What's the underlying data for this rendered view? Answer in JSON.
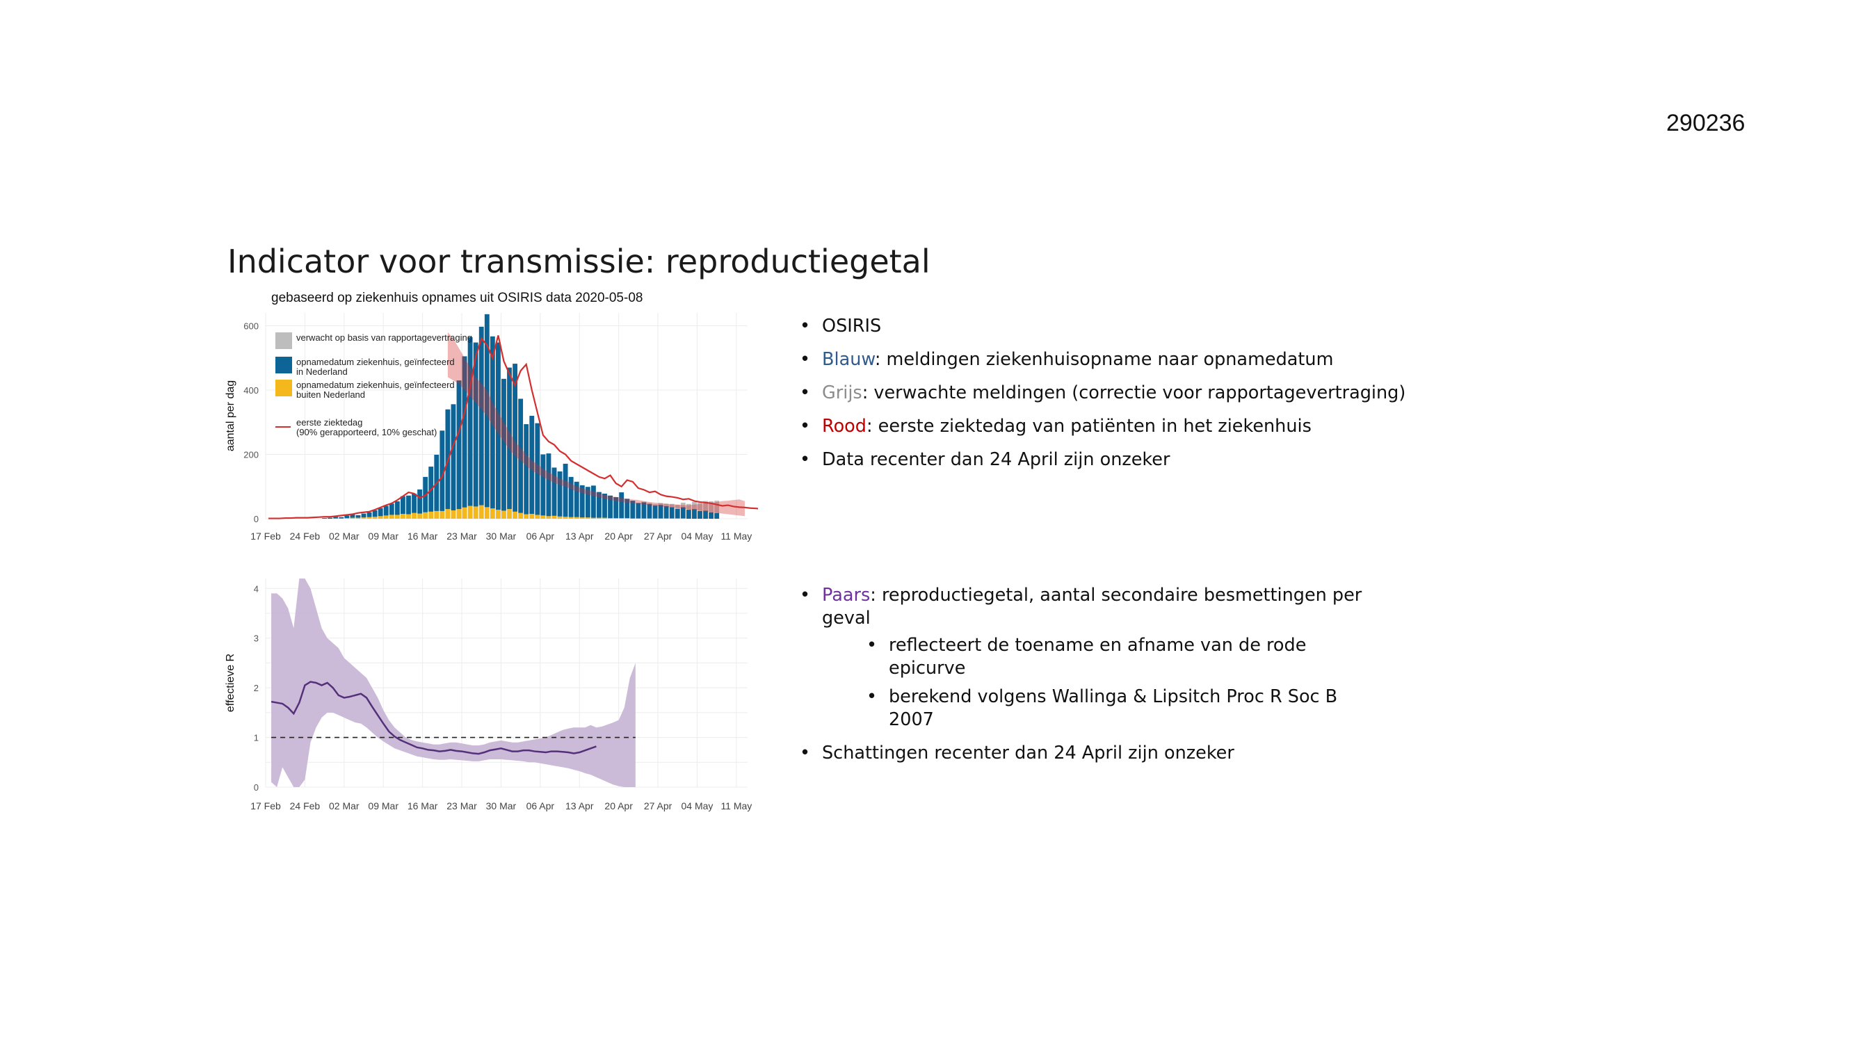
{
  "doc_id": "290236",
  "slide_title": "Indicator voor transmissie: reproductiegetal",
  "colors": {
    "blue": "#0d6496",
    "grey": "#bdbdbd",
    "yellow": "#f4b81d",
    "red": "#d32f2f",
    "purple": "#54307a",
    "purple_band": "#c7b4d4",
    "blue_text": "#2f5b8f",
    "grey_text": "#8c8c8c",
    "red_text": "#c00000",
    "purple_text": "#7030a0"
  },
  "bullets_top": [
    {
      "prefix": "",
      "text": "OSIRIS"
    },
    {
      "prefix": "Blauw",
      "prefix_color": "#2f5b8f",
      "text": ": meldingen ziekenhuisopname naar opnamedatum"
    },
    {
      "prefix": "Grijs",
      "prefix_color": "#8c8c8c",
      "text": ": verwachte meldingen (correctie voor rapportagevertraging)"
    },
    {
      "prefix": "Rood",
      "prefix_color": "#c00000",
      "text": ": eerste ziektedag van patiënten in het ziekenhuis"
    },
    {
      "prefix": "",
      "text": "Data recenter dan 24 April zijn onzeker"
    }
  ],
  "bullets_bottom": {
    "main_prefix": "Paars",
    "main_text": ": reproductiegetal, aantal secondaire  besmettingen per geval",
    "sub": [
      "reflecteert de toename en afname van de rode epicurve",
      "berekend volgens Wallinga & Lipsitch Proc R Soc B 2007"
    ],
    "last": "Schattingen recenter dan 24 April zijn onzeker"
  },
  "chart_data": [
    {
      "type": "bar",
      "title": "gebaseerd op ziekenhuis opnames uit OSIRIS data 2020-05-08",
      "ylabel": "aantal per dag",
      "xlabel": "",
      "ylim": [
        0,
        640
      ],
      "yticks": [
        0,
        200,
        400,
        600
      ],
      "xticks": [
        "17 Feb",
        "24 Feb",
        "02 Mar",
        "09 Mar",
        "16 Mar",
        "23 Mar",
        "30 Mar",
        "06 Apr",
        "13 Apr",
        "20 Apr",
        "27 Apr",
        "04 May",
        "11 May"
      ],
      "start_date": "2020-02-17",
      "grid": true,
      "legend": [
        {
          "label": "verwacht op basis van rapportagevertraging",
          "color": "#bdbdbd"
        },
        {
          "label": "opnamedatum ziekenhuis, geïnfecteerd\nin Nederland",
          "color": "#0d6496"
        },
        {
          "label": "opnamedatum ziekenhuis, geïnfecteerd\nbuiten Nederland",
          "color": "#f4b81d"
        },
        {
          "label": "eerste ziektedag\n(90% gerapporteerd, 10% geschat)",
          "color": "#d32f2f",
          "line": true
        }
      ],
      "series": [
        {
          "name": "opnamedatum ziekenhuis, geïnfecteerd in Nederland",
          "start": "2020-02-27",
          "values": [
            2,
            3,
            5,
            4,
            8,
            10,
            8,
            12,
            15,
            20,
            25,
            30,
            35,
            42,
            55,
            58,
            60,
            75,
            110,
            140,
            175,
            250,
            310,
            330,
            400,
            470,
            525,
            510,
            555,
            600,
            535,
            520,
            410,
            440,
            460,
            355,
            280,
            305,
            285,
            190,
            195,
            150,
            140,
            165,
            125,
            110,
            100,
            95,
            100,
            80,
            75,
            70,
            65,
            80,
            60,
            55,
            48,
            50,
            45,
            40,
            42,
            38,
            35,
            30,
            35,
            28,
            30,
            24,
            25,
            20,
            18
          ]
        },
        {
          "name": "opnamedatum ziekenhuis, geïnfecteerd buiten Nederland",
          "start": "2020-02-27",
          "values": [
            0,
            0,
            1,
            1,
            2,
            3,
            3,
            4,
            5,
            6,
            8,
            10,
            12,
            12,
            15,
            14,
            18,
            16,
            20,
            22,
            24,
            24,
            30,
            26,
            30,
            35,
            40,
            38,
            42,
            36,
            32,
            28,
            25,
            30,
            22,
            18,
            14,
            15,
            12,
            10,
            8,
            9,
            7,
            6,
            5,
            5,
            4,
            4,
            3,
            3,
            3,
            2,
            2,
            2,
            2,
            1,
            1,
            1,
            1,
            1,
            1,
            1,
            1,
            1,
            1,
            0,
            0,
            0,
            0,
            0,
            0
          ]
        },
        {
          "name": "verwacht op basis van rapportagevertraging",
          "start": "2020-04-24",
          "values": [
            2,
            3,
            4,
            6,
            8,
            10,
            12,
            14,
            18,
            22,
            26,
            30,
            34,
            38
          ]
        },
        {
          "name": "eerste ziektedag (90% gerapporteerd, 10% geschat)",
          "start": "2020-02-17",
          "values": [
            1,
            1,
            1,
            2,
            2,
            3,
            3,
            3,
            4,
            5,
            6,
            6,
            8,
            10,
            12,
            14,
            18,
            20,
            22,
            28,
            35,
            42,
            48,
            58,
            70,
            82,
            78,
            65,
            72,
            90,
            110,
            130,
            180,
            230,
            270,
            330,
            410,
            505,
            560,
            540,
            500,
            570,
            490,
            450,
            415,
            460,
            480,
            400,
            330,
            260,
            240,
            230,
            210,
            200,
            180,
            170,
            160,
            150,
            140,
            130,
            125,
            135,
            110,
            100,
            120,
            115,
            95,
            90,
            82,
            85,
            75,
            70,
            68,
            65,
            60,
            62,
            55,
            52,
            50,
            48,
            44,
            40,
            42,
            38,
            36,
            35,
            33,
            32,
            30,
            30,
            28,
            27,
            25,
            24,
            22,
            20
          ]
        },
        {
          "name": "band",
          "start": "2020-03-20",
          "upper": [
            580,
            560,
            530,
            500,
            470,
            440,
            420,
            400,
            360,
            330,
            300,
            270,
            240,
            220,
            200,
            180,
            170,
            155,
            145,
            135,
            125,
            118,
            110,
            100,
            95,
            90,
            85,
            80,
            75,
            70,
            68,
            65,
            62,
            60,
            58,
            55,
            52,
            50,
            48,
            46,
            45,
            44,
            43,
            42,
            44,
            46,
            48,
            50,
            52,
            55,
            56,
            58,
            60,
            55
          ],
          "lower": [
            440,
            430,
            420,
            400,
            380,
            360,
            340,
            320,
            290,
            265,
            240,
            215,
            195,
            180,
            165,
            150,
            140,
            130,
            120,
            112,
            105,
            100,
            92,
            85,
            80,
            75,
            70,
            66,
            62,
            58,
            55,
            52,
            50,
            48,
            46,
            44,
            42,
            40,
            38,
            36,
            35,
            33,
            31,
            29,
            27,
            25,
            22,
            20,
            18,
            16,
            14,
            12,
            10,
            8
          ]
        }
      ]
    },
    {
      "type": "line",
      "ylabel": "effectieve R",
      "xlabel": "",
      "ylim": [
        0,
        4.2
      ],
      "yticks": [
        0,
        1,
        2,
        3,
        4
      ],
      "xticks": [
        "17 Feb",
        "24 Feb",
        "02 Mar",
        "09 Mar",
        "16 Mar",
        "23 Mar",
        "30 Mar",
        "06 Apr",
        "13 Apr",
        "20 Apr",
        "27 Apr",
        "04 May",
        "11 May"
      ],
      "start_date": "2020-02-17",
      "reference_line": 1,
      "grid": true,
      "series": [
        {
          "name": "R",
          "start": "2020-02-17",
          "values": [
            1.72,
            1.7,
            1.68,
            1.6,
            1.48,
            1.7,
            2.05,
            2.12,
            2.1,
            2.05,
            2.1,
            2.0,
            1.85,
            1.8,
            1.82,
            1.85,
            1.88,
            1.8,
            1.62,
            1.45,
            1.28,
            1.12,
            1.02,
            0.95,
            0.9,
            0.85,
            0.8,
            0.78,
            0.75,
            0.74,
            0.72,
            0.73,
            0.75,
            0.73,
            0.72,
            0.7,
            0.68,
            0.67,
            0.7,
            0.74,
            0.76,
            0.78,
            0.75,
            0.72,
            0.72,
            0.74,
            0.74,
            0.72,
            0.71,
            0.7,
            0.72,
            0.72,
            0.71,
            0.7,
            0.68,
            0.7,
            0.74,
            0.78,
            0.82
          ]
        },
        {
          "name": "band",
          "start": "2020-02-17",
          "upper": [
            3.9,
            3.9,
            3.8,
            3.6,
            3.2,
            4.2,
            4.2,
            4.0,
            3.6,
            3.2,
            3.0,
            2.9,
            2.8,
            2.6,
            2.5,
            2.4,
            2.3,
            2.2,
            2.0,
            1.8,
            1.55,
            1.35,
            1.2,
            1.1,
            1.0,
            0.95,
            0.92,
            0.9,
            0.88,
            0.86,
            0.86,
            0.88,
            0.9,
            0.9,
            0.88,
            0.86,
            0.84,
            0.84,
            0.86,
            0.9,
            0.92,
            0.94,
            0.92,
            0.9,
            0.9,
            0.92,
            0.94,
            0.96,
            0.98,
            1.0,
            1.05,
            1.1,
            1.15,
            1.18,
            1.2,
            1.2,
            1.2,
            1.25,
            1.2,
            1.22,
            1.26,
            1.3,
            1.35,
            1.6,
            2.2,
            2.5
          ],
          "lower": [
            0.1,
            0.0,
            0.4,
            0.2,
            0.0,
            0.0,
            0.15,
            0.9,
            1.2,
            1.4,
            1.5,
            1.5,
            1.45,
            1.4,
            1.35,
            1.3,
            1.28,
            1.2,
            1.1,
            1.0,
            0.92,
            0.85,
            0.78,
            0.74,
            0.7,
            0.66,
            0.62,
            0.6,
            0.58,
            0.56,
            0.55,
            0.55,
            0.56,
            0.55,
            0.54,
            0.53,
            0.52,
            0.52,
            0.54,
            0.56,
            0.56,
            0.56,
            0.55,
            0.54,
            0.53,
            0.52,
            0.5,
            0.5,
            0.48,
            0.46,
            0.44,
            0.42,
            0.4,
            0.38,
            0.35,
            0.32,
            0.28,
            0.25,
            0.2,
            0.15,
            0.1,
            0.05,
            0.02,
            0.0,
            0.0,
            0.0
          ]
        }
      ]
    }
  ]
}
